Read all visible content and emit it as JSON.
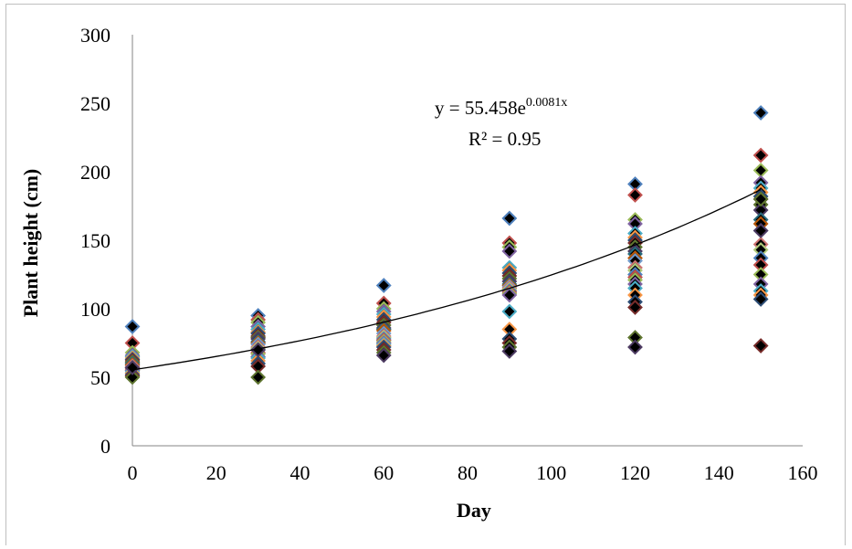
{
  "chart_data": {
    "type": "scatter",
    "title": "",
    "xlabel": "Day",
    "ylabel": "Plant height (cm)",
    "xlim": [
      0,
      160
    ],
    "ylim": [
      0,
      300
    ],
    "x_ticks": [
      "0",
      "20",
      "40",
      "60",
      "80",
      "100",
      "120",
      "140",
      "160"
    ],
    "y_ticks": [
      "0",
      "50",
      "100",
      "150",
      "200",
      "250",
      "300"
    ],
    "grid": false,
    "legend": "none",
    "marker": "diamond",
    "marker_colors": [
      "#4f81bd",
      "#c0504d",
      "#9bbb59",
      "#8064a2",
      "#4bacc6",
      "#f79646",
      "#2c4d75",
      "#772c2a",
      "#5f7530",
      "#4d3b62",
      "#276a7c",
      "#b65708",
      "#729aca",
      "#cd7371",
      "#afc97a"
    ],
    "series": [
      {
        "x": [
          0,
          0,
          0,
          0,
          0,
          0,
          0,
          0,
          0,
          0,
          0,
          0,
          0,
          0,
          0,
          0,
          0,
          0,
          0,
          0,
          0,
          0,
          0,
          0,
          0
        ],
        "values": [
          87,
          75,
          68,
          66,
          65,
          64,
          63,
          62,
          61,
          60,
          60,
          59,
          58,
          58,
          57,
          57,
          56,
          55,
          55,
          54,
          53,
          52,
          51,
          50,
          57
        ]
      },
      {
        "x": [
          30,
          30,
          30,
          30,
          30,
          30,
          30,
          30,
          30,
          30,
          30,
          30,
          30,
          30,
          30,
          30,
          30,
          30,
          30,
          30,
          30,
          30,
          30,
          30,
          30
        ],
        "values": [
          95,
          92,
          90,
          87,
          85,
          83,
          82,
          80,
          79,
          78,
          76,
          75,
          74,
          72,
          71,
          70,
          68,
          67,
          65,
          64,
          62,
          60,
          58,
          50,
          70
        ]
      },
      {
        "x": [
          60,
          60,
          60,
          60,
          60,
          60,
          60,
          60,
          60,
          60,
          60,
          60,
          60,
          60,
          60,
          60,
          60,
          60,
          60,
          60,
          60,
          60,
          60,
          60,
          60
        ],
        "values": [
          117,
          104,
          100,
          98,
          96,
          94,
          92,
          90,
          88,
          86,
          85,
          84,
          82,
          80,
          79,
          78,
          77,
          76,
          75,
          74,
          73,
          72,
          70,
          68,
          66
        ]
      },
      {
        "x": [
          90,
          90,
          90,
          90,
          90,
          90,
          90,
          90,
          90,
          90,
          90,
          90,
          90,
          90,
          90,
          90,
          90,
          90,
          90,
          90,
          90,
          90,
          90,
          90,
          90
        ],
        "values": [
          166,
          148,
          145,
          142,
          130,
          128,
          126,
          124,
          122,
          120,
          118,
          117,
          116,
          115,
          114,
          113,
          112,
          111,
          110,
          98,
          85,
          78,
          75,
          72,
          69
        ]
      },
      {
        "x": [
          120,
          120,
          120,
          120,
          120,
          120,
          120,
          120,
          120,
          120,
          120,
          120,
          120,
          120,
          120,
          120,
          120,
          120,
          120,
          120,
          120,
          120,
          120,
          120,
          120
        ],
        "values": [
          191,
          183,
          165,
          162,
          155,
          152,
          150,
          148,
          145,
          142,
          140,
          137,
          135,
          130,
          128,
          125,
          123,
          121,
          118,
          115,
          110,
          105,
          101,
          79,
          72
        ]
      },
      {
        "x": [
          150,
          150,
          150,
          150,
          150,
          150,
          150,
          150,
          150,
          150,
          150,
          150,
          150,
          150,
          150,
          150,
          150,
          150,
          150,
          150,
          150,
          150,
          150,
          150,
          150
        ],
        "values": [
          243,
          212,
          201,
          192,
          188,
          185,
          182,
          180,
          176,
          172,
          165,
          162,
          157,
          147,
          143,
          137,
          132,
          125,
          118,
          113,
          110,
          107,
          73,
          180,
          157
        ]
      }
    ],
    "trendline": {
      "type": "exponential",
      "a": 55.458,
      "b": 0.0081,
      "equation_text": "y = 55.458e",
      "equation_exponent": "0.0081x",
      "r2_text": "R² = 0.95"
    }
  }
}
